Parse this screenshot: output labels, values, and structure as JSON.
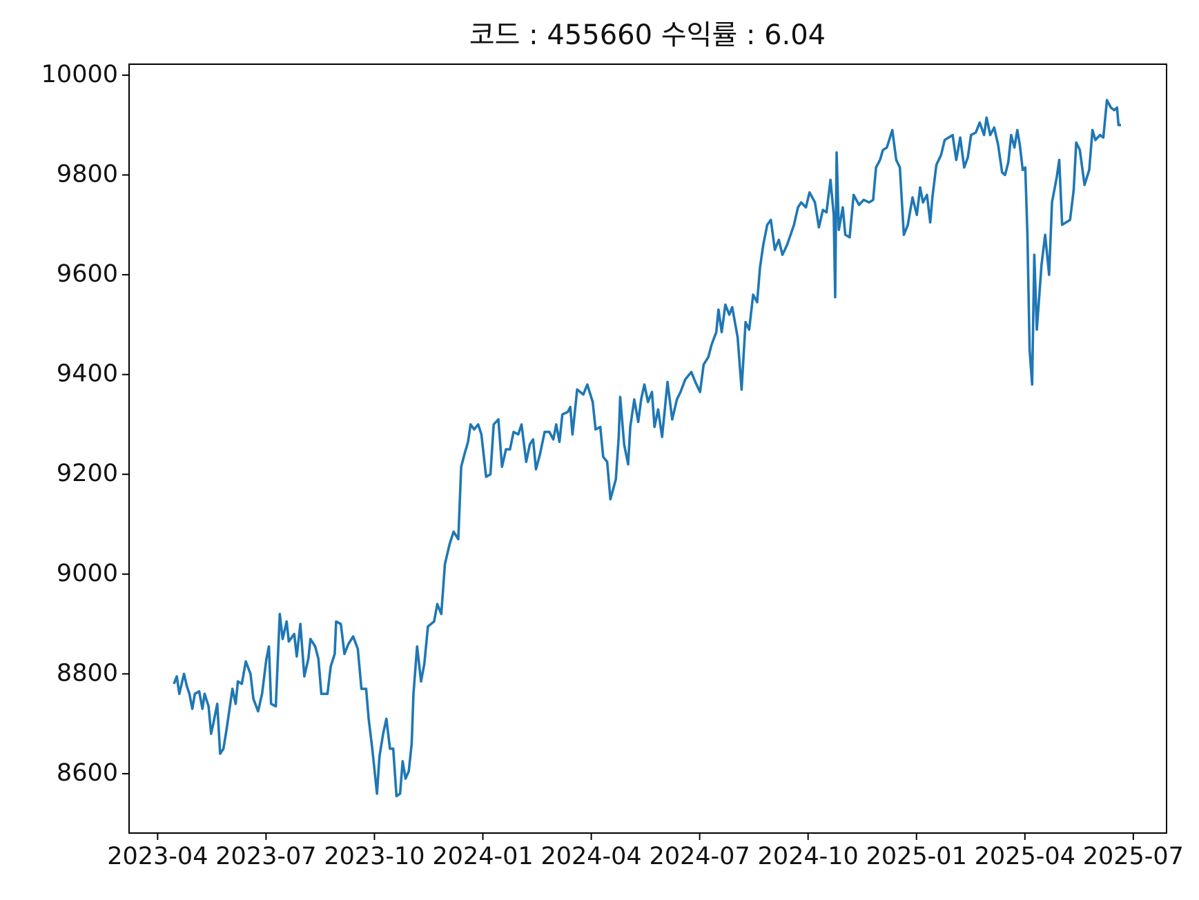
{
  "chart_data": {
    "type": "line",
    "title": "코드 : 455660 수익률 : 6.04",
    "xlim": [
      -0.79,
      27.92
    ],
    "xticks": [
      {
        "value": 0,
        "label": "2023-04"
      },
      {
        "value": 3,
        "label": "2023-07"
      },
      {
        "value": 6,
        "label": "2023-10"
      },
      {
        "value": 9,
        "label": "2024-01"
      },
      {
        "value": 12,
        "label": "2024-04"
      },
      {
        "value": 15,
        "label": "2024-07"
      },
      {
        "value": 18,
        "label": "2024-10"
      },
      {
        "value": 21,
        "label": "2025-01"
      },
      {
        "value": 24,
        "label": "2025-04"
      },
      {
        "value": 27,
        "label": "2025-07"
      }
    ],
    "ylim": [
      8481,
      10022
    ],
    "yticks": [
      8600,
      8800,
      9000,
      9200,
      9400,
      9600,
      9800,
      10000
    ],
    "grid": false,
    "x": [
      0.45,
      0.53,
      0.6,
      0.73,
      0.81,
      0.88,
      0.96,
      1.03,
      1.15,
      1.24,
      1.3,
      1.41,
      1.48,
      1.54,
      1.65,
      1.73,
      1.82,
      1.9,
      1.97,
      2.07,
      2.16,
      2.22,
      2.33,
      2.44,
      2.57,
      2.65,
      2.78,
      2.89,
      3.01,
      3.08,
      3.14,
      3.27,
      3.38,
      3.46,
      3.57,
      3.63,
      3.78,
      3.85,
      3.95,
      4.06,
      4.17,
      4.23,
      4.36,
      4.45,
      4.53,
      4.7,
      4.79,
      4.9,
      4.94,
      5.07,
      5.17,
      5.28,
      5.41,
      5.54,
      5.64,
      5.77,
      5.84,
      5.94,
      6.07,
      6.14,
      6.24,
      6.33,
      6.43,
      6.52,
      6.61,
      6.71,
      6.78,
      6.86,
      6.95,
      7.03,
      7.08,
      7.18,
      7.29,
      7.38,
      7.48,
      7.65,
      7.74,
      7.85,
      7.95,
      8.08,
      8.19,
      8.32,
      8.4,
      8.49,
      8.59,
      8.66,
      8.76,
      8.87,
      8.96,
      9.09,
      9.21,
      9.3,
      9.43,
      9.53,
      9.64,
      9.75,
      9.85,
      9.98,
      10.07,
      10.2,
      10.3,
      10.39,
      10.47,
      10.58,
      10.71,
      10.84,
      10.95,
      11.03,
      11.12,
      11.2,
      11.35,
      11.42,
      11.48,
      11.61,
      11.78,
      11.89,
      12.04,
      12.12,
      12.25,
      12.33,
      12.44,
      12.53,
      12.68,
      12.76,
      12.8,
      12.91,
      13.02,
      13.08,
      13.19,
      13.3,
      13.38,
      13.47,
      13.57,
      13.68,
      13.75,
      13.85,
      13.96,
      14.11,
      14.24,
      14.37,
      14.47,
      14.6,
      14.77,
      14.88,
      15.01,
      15.11,
      15.24,
      15.33,
      15.46,
      15.52,
      15.61,
      15.71,
      15.82,
      15.9,
      16.05,
      16.16,
      16.27,
      16.37,
      16.48,
      16.59,
      16.67,
      16.76,
      16.87,
      16.97,
      17.08,
      17.19,
      17.29,
      17.42,
      17.61,
      17.72,
      17.81,
      17.94,
      18.04,
      18.19,
      18.3,
      18.41,
      18.51,
      18.62,
      18.71,
      18.75,
      18.79,
      18.85,
      18.96,
      19.03,
      19.15,
      19.26,
      19.41,
      19.54,
      19.69,
      19.8,
      19.88,
      19.99,
      20.07,
      20.18,
      20.33,
      20.44,
      20.54,
      20.65,
      20.76,
      20.89,
      21.01,
      21.1,
      21.18,
      21.29,
      21.38,
      21.44,
      21.55,
      21.68,
      21.78,
      22.0,
      22.1,
      22.21,
      22.32,
      22.42,
      22.51,
      22.64,
      22.75,
      22.87,
      22.94,
      23.04,
      23.15,
      23.26,
      23.37,
      23.45,
      23.54,
      23.62,
      23.71,
      23.79,
      23.86,
      23.94,
      24.01,
      24.07,
      24.13,
      24.2,
      24.26,
      24.33,
      24.39,
      24.46,
      24.56,
      24.67,
      24.75,
      24.88,
      24.95,
      25.03,
      25.25,
      25.35,
      25.42,
      25.52,
      25.65,
      25.78,
      25.87,
      25.95,
      26.08,
      26.17,
      26.27,
      26.38,
      26.47,
      26.55,
      26.59,
      26.66
    ],
    "series": [
      {
        "color": "#1f77b4",
        "values": [
          8780,
          8795,
          8760,
          8800,
          8775,
          8760,
          8730,
          8760,
          8765,
          8730,
          8760,
          8735,
          8680,
          8700,
          8740,
          8640,
          8650,
          8685,
          8720,
          8770,
          8740,
          8785,
          8780,
          8825,
          8800,
          8750,
          8725,
          8760,
          8830,
          8855,
          8740,
          8735,
          8920,
          8870,
          8905,
          8865,
          8880,
          8835,
          8900,
          8795,
          8830,
          8870,
          8855,
          8830,
          8760,
          8760,
          8815,
          8840,
          8905,
          8900,
          8840,
          8860,
          8875,
          8850,
          8770,
          8770,
          8710,
          8650,
          8560,
          8635,
          8680,
          8710,
          8650,
          8650,
          8555,
          8560,
          8625,
          8590,
          8605,
          8660,
          8760,
          8855,
          8785,
          8820,
          8895,
          8905,
          8940,
          8920,
          9020,
          9060,
          9085,
          9070,
          9215,
          9240,
          9265,
          9300,
          9290,
          9300,
          9280,
          9195,
          9200,
          9300,
          9310,
          9215,
          9250,
          9250,
          9285,
          9280,
          9300,
          9225,
          9260,
          9270,
          9210,
          9240,
          9285,
          9285,
          9270,
          9300,
          9265,
          9320,
          9325,
          9335,
          9280,
          9370,
          9360,
          9380,
          9345,
          9290,
          9295,
          9235,
          9225,
          9150,
          9190,
          9275,
          9355,
          9260,
          9220,
          9295,
          9350,
          9305,
          9350,
          9380,
          9345,
          9365,
          9295,
          9330,
          9275,
          9385,
          9310,
          9350,
          9365,
          9390,
          9405,
          9385,
          9365,
          9420,
          9435,
          9460,
          9485,
          9530,
          9485,
          9540,
          9520,
          9535,
          9475,
          9370,
          9505,
          9490,
          9560,
          9545,
          9615,
          9660,
          9700,
          9710,
          9650,
          9670,
          9640,
          9660,
          9700,
          9735,
          9745,
          9735,
          9765,
          9745,
          9695,
          9730,
          9725,
          9790,
          9720,
          9555,
          9845,
          9690,
          9735,
          9680,
          9675,
          9760,
          9740,
          9750,
          9745,
          9750,
          9815,
          9830,
          9850,
          9855,
          9890,
          9830,
          9815,
          9680,
          9700,
          9755,
          9720,
          9775,
          9745,
          9760,
          9705,
          9755,
          9820,
          9840,
          9870,
          9880,
          9830,
          9875,
          9815,
          9835,
          9880,
          9885,
          9905,
          9880,
          9915,
          9880,
          9895,
          9860,
          9805,
          9800,
          9825,
          9880,
          9855,
          9890,
          9860,
          9810,
          9815,
          9680,
          9450,
          9380,
          9640,
          9490,
          9550,
          9620,
          9680,
          9600,
          9745,
          9795,
          9830,
          9700,
          9710,
          9770,
          9865,
          9850,
          9780,
          9810,
          9890,
          9870,
          9880,
          9875,
          9950,
          9935,
          9930,
          9935,
          9900,
          9900
        ]
      }
    ]
  }
}
